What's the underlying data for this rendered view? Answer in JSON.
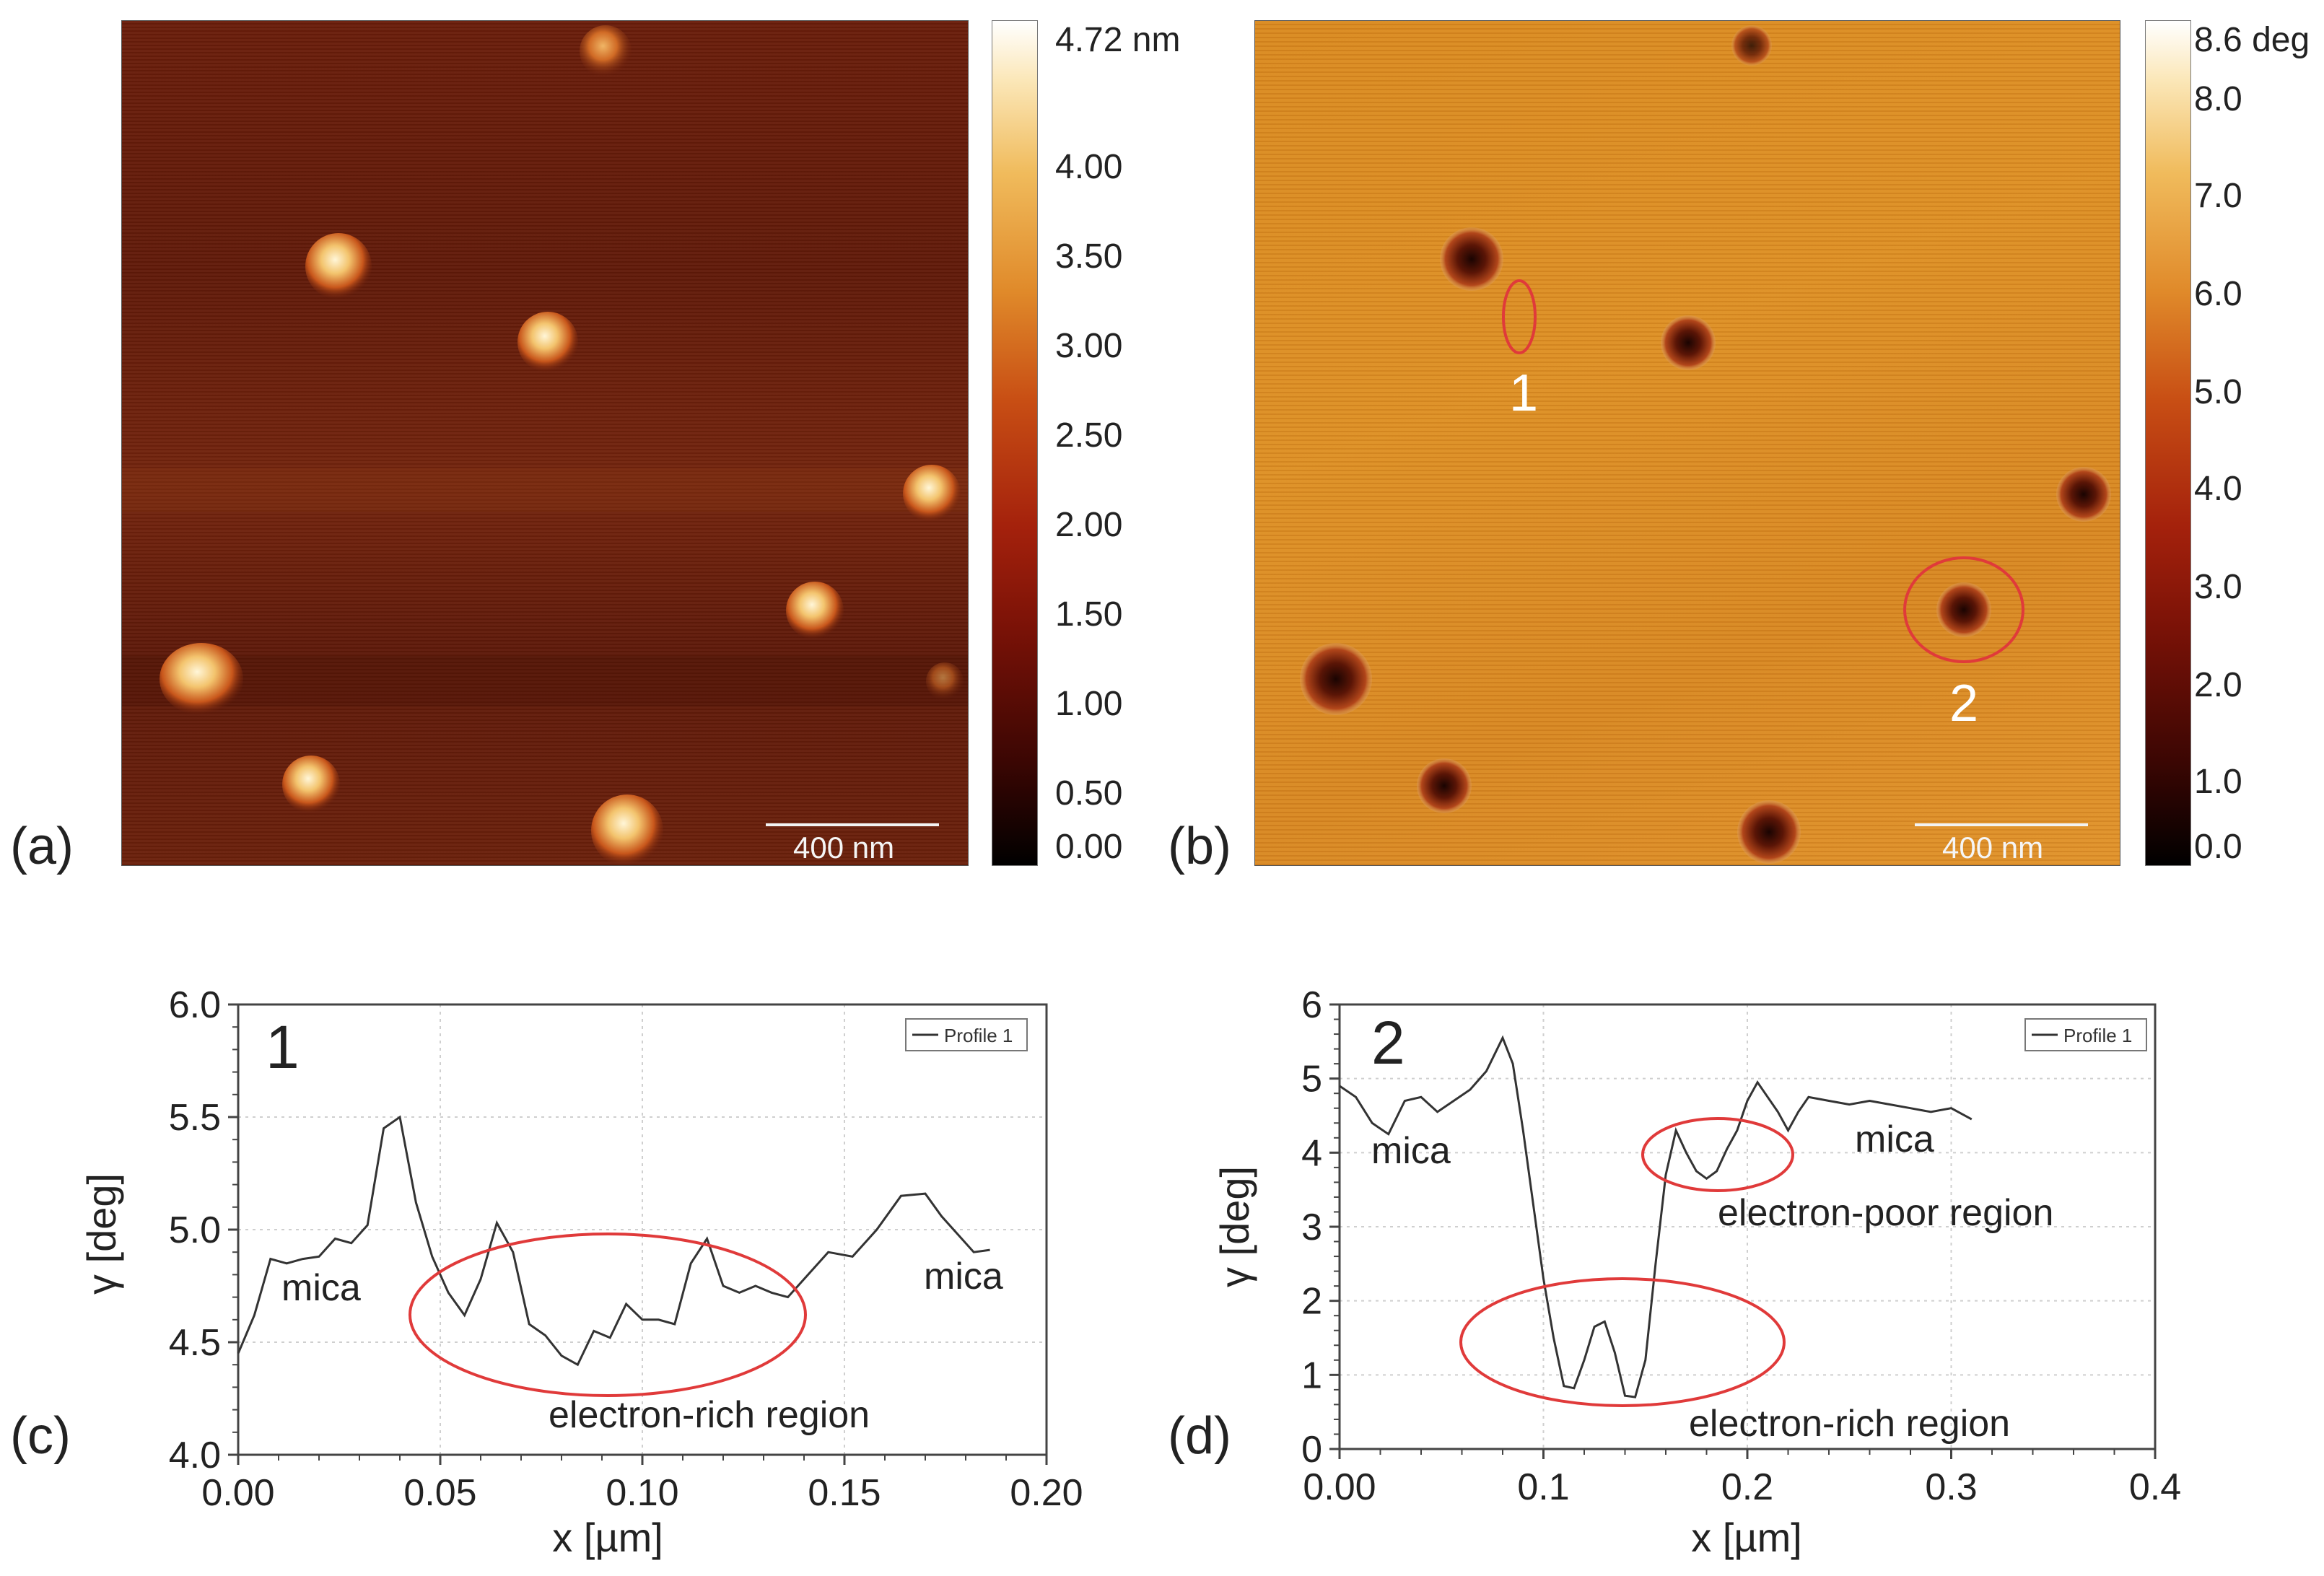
{
  "panels": {
    "a": {
      "label": "(a)",
      "scale_bar": "400 nm",
      "colorbar_ticks": [
        "4.72 nm",
        "4.00",
        "3.50",
        "3.00",
        "2.50",
        "2.00",
        "1.50",
        "1.00",
        "0.50",
        "0.00"
      ]
    },
    "b": {
      "label": "(b)",
      "scale_bar": "400 nm",
      "colorbar_ticks": [
        "8.6 deg",
        "8.0",
        "7.0",
        "6.0",
        "5.0",
        "4.0",
        "3.0",
        "2.0",
        "1.0",
        "0.0"
      ],
      "markers": [
        "1",
        "2"
      ]
    },
    "c": {
      "label": "(c)"
    },
    "d": {
      "label": "(d)"
    }
  },
  "colors": {
    "curve": "#333333",
    "annotation": "#e03a3a",
    "grid": "#cfcfcf"
  },
  "chart_data": [
    {
      "id": "c",
      "type": "line",
      "panel_number": "1",
      "legend": "Profile 1",
      "xlabel": "x [µm]",
      "ylabel": "γ [deg]",
      "xlim": [
        0.0,
        0.2
      ],
      "ylim": [
        4.0,
        6.0
      ],
      "xticks": [
        "0.00",
        "0.05",
        "0.10",
        "0.15",
        "0.20"
      ],
      "yticks": [
        "4.0",
        "4.5",
        "5.0",
        "5.5",
        "6.0"
      ],
      "annotations": [
        "mica",
        "mica",
        "electron-rich region"
      ],
      "x": [
        0.0,
        0.004,
        0.008,
        0.012,
        0.016,
        0.02,
        0.024,
        0.028,
        0.032,
        0.036,
        0.04,
        0.044,
        0.048,
        0.052,
        0.056,
        0.06,
        0.064,
        0.068,
        0.072,
        0.076,
        0.08,
        0.084,
        0.088,
        0.092,
        0.096,
        0.1,
        0.104,
        0.108,
        0.112,
        0.116,
        0.12,
        0.124,
        0.128,
        0.132,
        0.136,
        0.14,
        0.146,
        0.152,
        0.158,
        0.164,
        0.17,
        0.174,
        0.178,
        0.182,
        0.186
      ],
      "values": [
        4.45,
        4.62,
        4.87,
        4.85,
        4.87,
        4.88,
        4.96,
        4.94,
        5.02,
        5.45,
        5.5,
        5.12,
        4.88,
        4.72,
        4.62,
        4.78,
        5.03,
        4.9,
        4.58,
        4.53,
        4.44,
        4.4,
        4.55,
        4.52,
        4.67,
        4.6,
        4.6,
        4.58,
        4.85,
        4.96,
        4.75,
        4.72,
        4.75,
        4.72,
        4.7,
        4.78,
        4.9,
        4.88,
        5.0,
        5.15,
        5.16,
        5.06,
        4.98,
        4.9,
        4.91
      ]
    },
    {
      "id": "d",
      "type": "line",
      "panel_number": "2",
      "legend": "Profile 1",
      "xlabel": "x [µm]",
      "ylabel": "γ [deg]",
      "xlim": [
        0.0,
        0.4
      ],
      "ylim": [
        0,
        6
      ],
      "xticks": [
        "0.00",
        "0.1",
        "0.2",
        "0.3",
        "0.4"
      ],
      "yticks": [
        "0",
        "1",
        "2",
        "3",
        "4",
        "5",
        "6"
      ],
      "annotations": [
        "mica",
        "mica",
        "electron-poor region",
        "electron-rich region"
      ],
      "x": [
        0.0,
        0.008,
        0.016,
        0.024,
        0.032,
        0.04,
        0.048,
        0.056,
        0.064,
        0.072,
        0.08,
        0.085,
        0.09,
        0.095,
        0.1,
        0.105,
        0.11,
        0.115,
        0.12,
        0.125,
        0.13,
        0.135,
        0.14,
        0.145,
        0.15,
        0.155,
        0.16,
        0.165,
        0.17,
        0.175,
        0.18,
        0.185,
        0.19,
        0.195,
        0.2,
        0.205,
        0.21,
        0.215,
        0.22,
        0.225,
        0.23,
        0.24,
        0.25,
        0.26,
        0.27,
        0.28,
        0.29,
        0.3,
        0.31
      ],
      "values": [
        4.9,
        4.75,
        4.4,
        4.25,
        4.7,
        4.75,
        4.55,
        4.7,
        4.85,
        5.1,
        5.55,
        5.2,
        4.3,
        3.3,
        2.3,
        1.5,
        0.85,
        0.82,
        1.2,
        1.65,
        1.72,
        1.3,
        0.72,
        0.7,
        1.2,
        2.5,
        3.7,
        4.3,
        4.0,
        3.75,
        3.65,
        3.75,
        4.05,
        4.3,
        4.7,
        4.95,
        4.75,
        4.55,
        4.3,
        4.55,
        4.75,
        4.7,
        4.65,
        4.7,
        4.65,
        4.6,
        4.55,
        4.6,
        4.45
      ]
    }
  ]
}
